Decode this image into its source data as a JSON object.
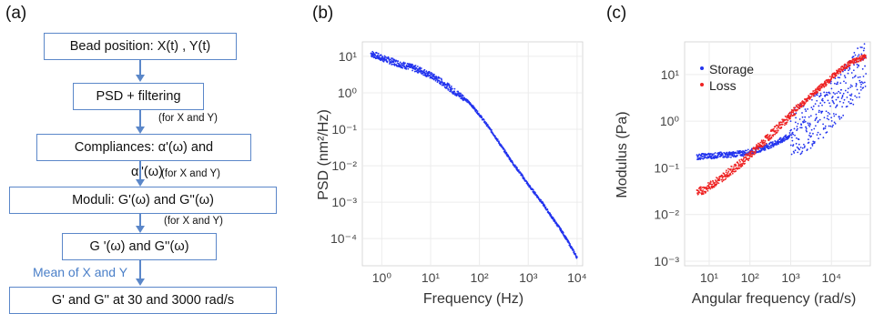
{
  "panels": {
    "a": "(a)",
    "b": "(b)",
    "c": "(c)"
  },
  "flowchart": {
    "box1": "Bead position: X(t) , Y(t)",
    "box2": "PSD + filtering",
    "note1": "(for X and Y)",
    "box3": "Compliances: α'(ω) and",
    "box3_cont": "α''(ω)",
    "note2": "(for X and Y)",
    "box4": "Moduli: G'(ω) and G''(ω)",
    "note3": "(for X and Y)",
    "box5": "G '(ω) and G''(ω)",
    "note4": "Mean of X and Y",
    "box6": "G' and G'' at 30 and 3000 rad/s"
  },
  "colors": {
    "flow_blue": "#5b87c9",
    "storage": "#2233ee",
    "loss": "#ee2222"
  },
  "chart_data": [
    {
      "type": "scatter",
      "xlabel": "Frequency (Hz)",
      "ylabel": "PSD (nm²/Hz)",
      "xscale": "log",
      "yscale": "log",
      "xlim": [
        0.4,
        13000
      ],
      "ylim": [
        1.8e-05,
        25
      ],
      "xticks": [
        "10⁰",
        "10¹",
        "10²",
        "10³",
        "10⁴"
      ],
      "yticks": [
        "10¹",
        "10⁰",
        "10⁻¹",
        "10⁻²",
        "10⁻³",
        "10⁻⁴"
      ],
      "grid": true,
      "series": [
        {
          "color": "#2233ee",
          "x": [
            0.6,
            1.0,
            1.5,
            2.5,
            4,
            6,
            10,
            15,
            20,
            30,
            50,
            70,
            100,
            150,
            200,
            300,
            500,
            700,
            1000,
            1500,
            2000,
            3000,
            5000,
            7000,
            10000
          ],
          "y": [
            12,
            9,
            7.5,
            6,
            5,
            4.2,
            3.0,
            2.2,
            1.7,
            1.1,
            0.7,
            0.45,
            0.25,
            0.12,
            0.07,
            0.03,
            0.011,
            0.006,
            0.003,
            0.0015,
            0.0009,
            0.0004,
            0.00015,
            7e-05,
            3e-05
          ]
        }
      ]
    },
    {
      "type": "scatter",
      "xlabel": "Angular frequency (rad/s)",
      "ylabel": "Modulus (Pa)",
      "xscale": "log",
      "yscale": "log",
      "xlim": [
        2.5,
        90000
      ],
      "ylim": [
        0.0008,
        50
      ],
      "xticks": [
        "10¹",
        "10²",
        "10³",
        "10⁴"
      ],
      "yticks": [
        "10¹",
        "10⁰",
        "10⁻¹",
        "10⁻²",
        "10⁻³"
      ],
      "legend": "top-left",
      "grid": true,
      "series": [
        {
          "name": "Storage",
          "color": "#2233ee",
          "x": [
            5,
            8,
            12,
            20,
            30,
            50,
            80,
            120,
            200,
            300,
            500,
            800,
            1200,
            2000,
            3000,
            5000,
            8000,
            12000,
            20000,
            30000,
            50000,
            70000
          ],
          "y": [
            0.17,
            0.18,
            0.18,
            0.19,
            0.19,
            0.2,
            0.21,
            0.23,
            0.26,
            0.3,
            0.36,
            0.45,
            0.55,
            0.7,
            0.9,
            1.3,
            1.9,
            2.8,
            4.5,
            7,
            12,
            18
          ]
        },
        {
          "name": "Loss",
          "color": "#ee2222",
          "x": [
            5,
            8,
            12,
            20,
            30,
            50,
            80,
            120,
            200,
            300,
            500,
            800,
            1200,
            2000,
            3000,
            5000,
            8000,
            12000,
            20000,
            30000,
            50000,
            70000
          ],
          "y": [
            0.03,
            0.035,
            0.045,
            0.06,
            0.08,
            0.11,
            0.16,
            0.22,
            0.33,
            0.48,
            0.75,
            1.1,
            1.6,
            2.4,
            3.4,
            5,
            7,
            10,
            14,
            18,
            22,
            24
          ]
        }
      ]
    }
  ]
}
